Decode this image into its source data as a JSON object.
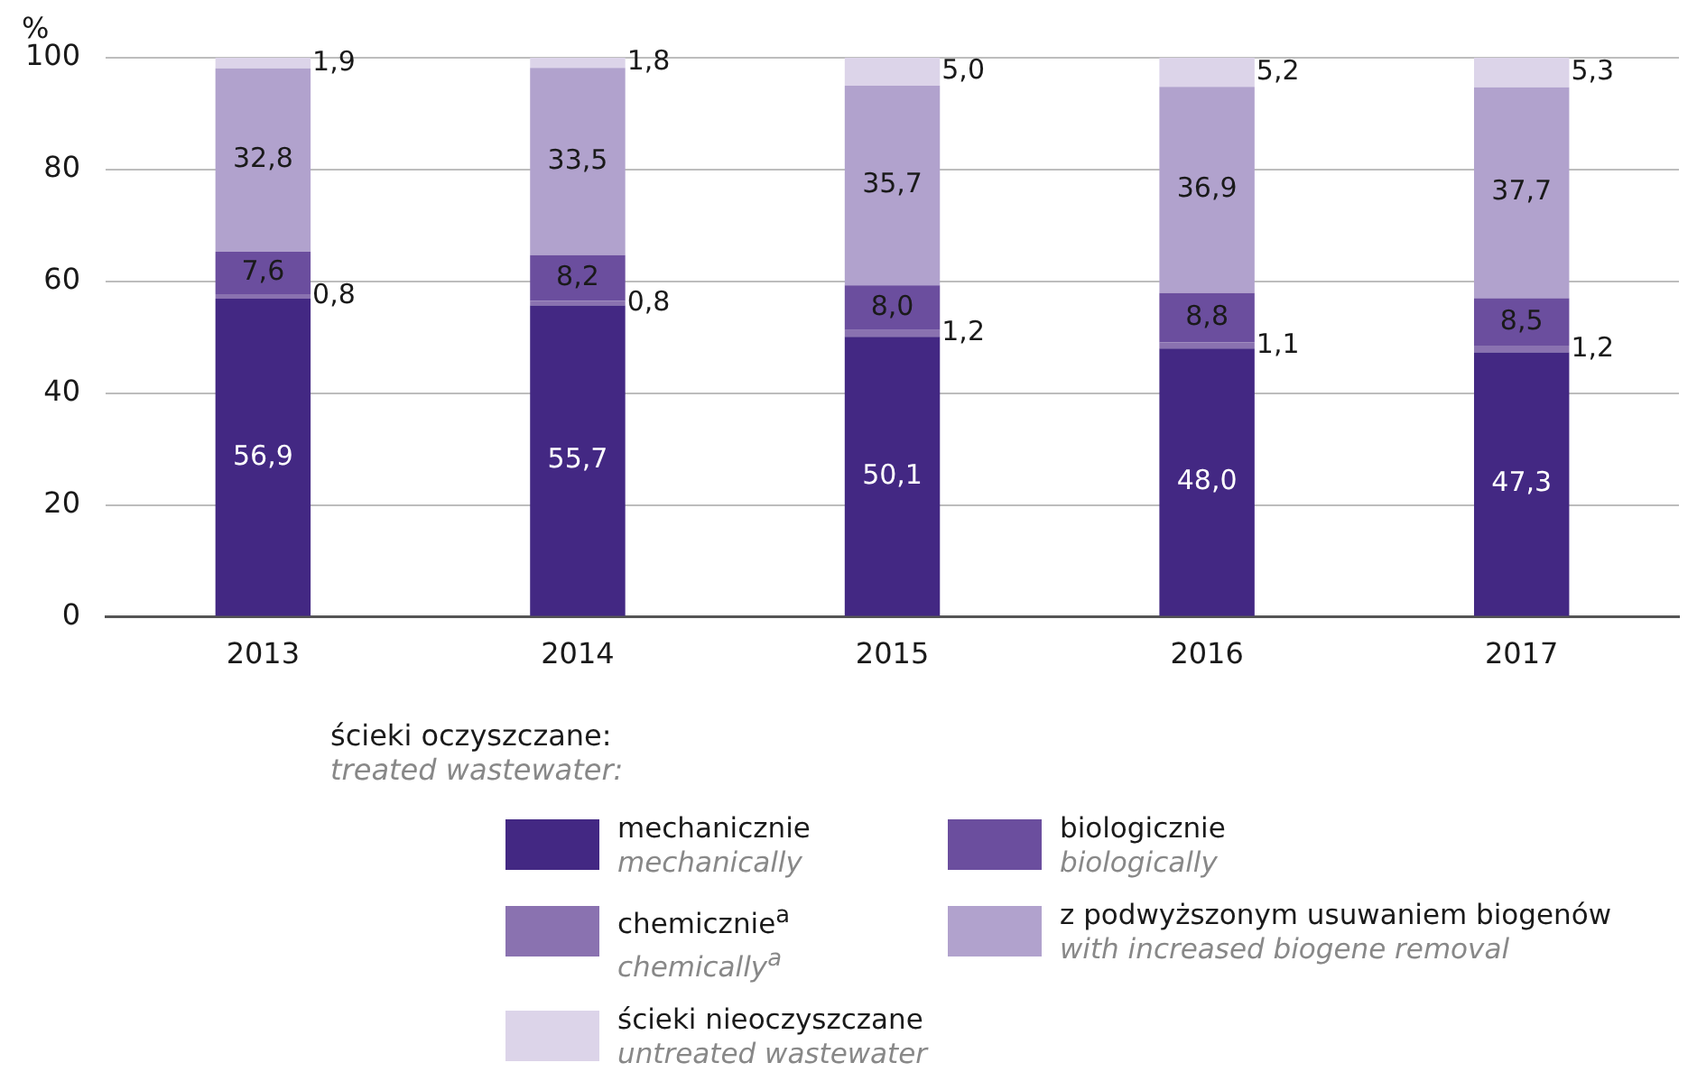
{
  "chart_data": {
    "type": "bar",
    "stacked": true,
    "ylabel": "%",
    "legend_title": "ścieki oczyszczane:\ntreated wastewater:",
    "categories": [
      "2013",
      "2014",
      "2015",
      "2016",
      "2017"
    ],
    "series": [
      {
        "name": "mechanicznie\nmechanically",
        "color": "#432883",
        "values": [
          56.9,
          55.7,
          50.1,
          48.0,
          47.3
        ],
        "value_labels": [
          "56,9",
          "55,7",
          "50,1",
          "48,0",
          "47,3"
        ]
      },
      {
        "name": "chemicznie$^{a}$\nchemically$^{a}$",
        "color": "#8a72b0",
        "values": [
          0.8,
          0.8,
          1.2,
          1.1,
          1.2
        ],
        "value_labels": [
          "0,8",
          "0,8",
          "1,2",
          "1,1",
          "1,2"
        ]
      },
      {
        "name": "biologicznie\nbiologically",
        "color": "#6b4e9e",
        "values": [
          7.6,
          8.2,
          8.0,
          8.8,
          8.5
        ],
        "value_labels": [
          "7,6",
          "8,2",
          "8,0",
          "8,8",
          "8,5"
        ]
      },
      {
        "name": "z podwyższonym usuwaniem biogenów\nwith increased biogene removal",
        "color": "#b1a2cd",
        "values": [
          32.8,
          33.5,
          35.7,
          36.9,
          37.7
        ],
        "value_labels": [
          "32,8",
          "33,5",
          "35,7",
          "36,9",
          "37,7"
        ]
      },
      {
        "name": "ścieki nieoczyszczane\nuntreated wastewater",
        "color": "#dcd4e9",
        "values": [
          1.9,
          1.8,
          5.0,
          5.2,
          5.3
        ],
        "value_labels": [
          "1,9",
          "1,8",
          "5,0",
          "5,2",
          "5,3"
        ]
      }
    ],
    "ylim": [
      0,
      100
    ],
    "yticks": [
      0,
      20,
      40,
      60,
      80,
      100
    ],
    "grid": "y",
    "legend": "bottom"
  }
}
